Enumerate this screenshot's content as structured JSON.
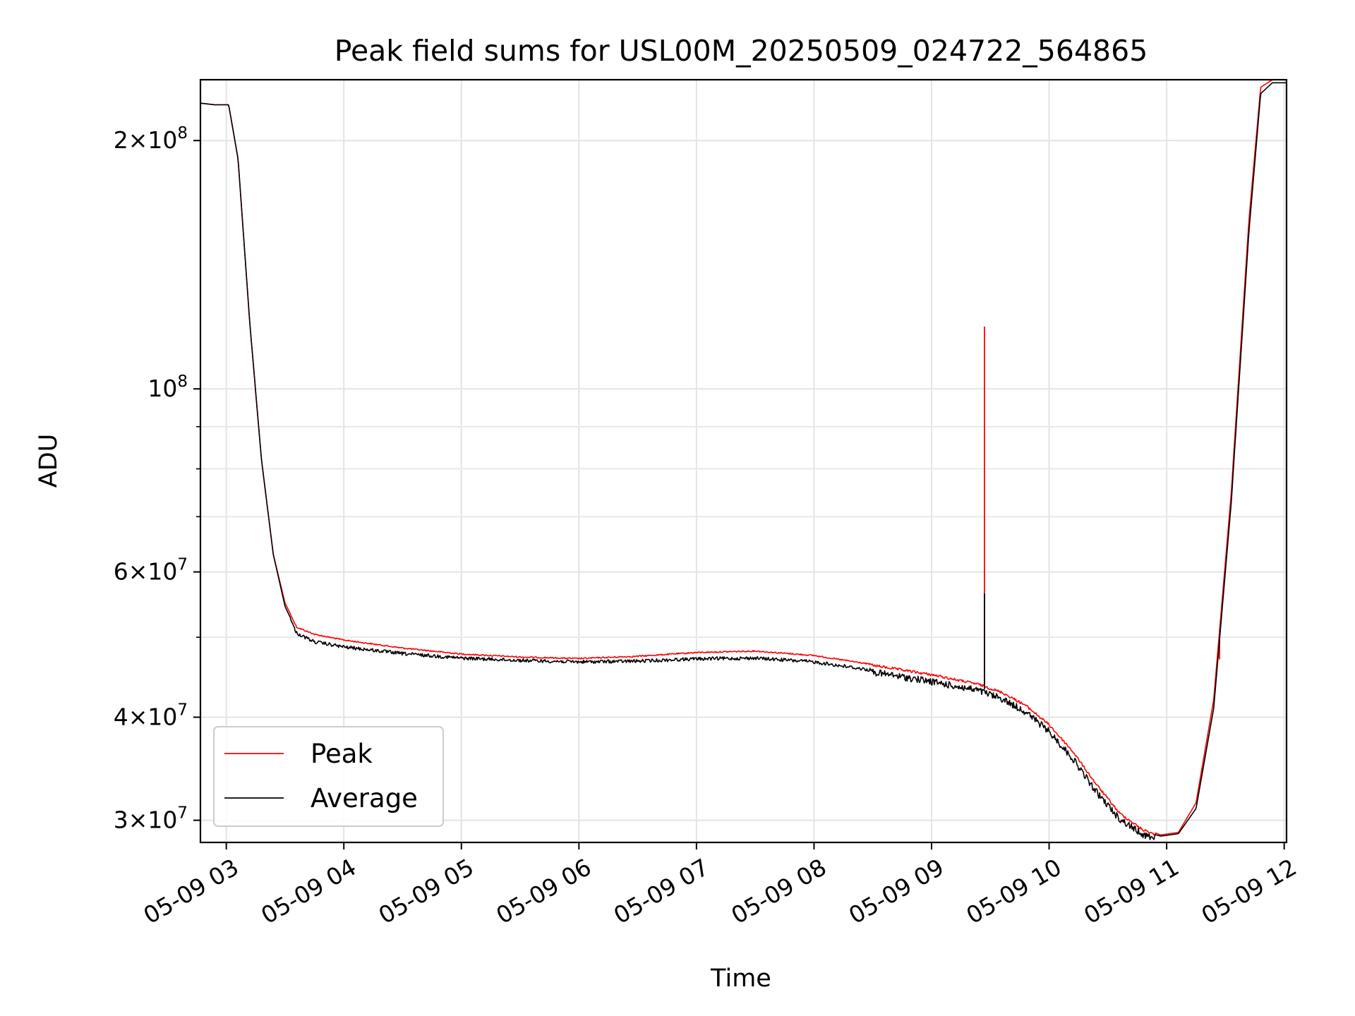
{
  "chart_data": {
    "type": "line",
    "title": "Peak field sums for USL00M_20250509_024722_564865",
    "xlabel": "Time",
    "ylabel": "ADU",
    "x_unit": "hours (2025-05-09)",
    "xlim": [
      2.78,
      12.02
    ],
    "ylim": [
      28200000,
      237000000
    ],
    "yscale": "log",
    "grid": true,
    "legend_position": "lower-left",
    "x_tick_labels": [
      {
        "x": 3,
        "label": "05-09 03"
      },
      {
        "x": 4,
        "label": "05-09 04"
      },
      {
        "x": 5,
        "label": "05-09 05"
      },
      {
        "x": 6,
        "label": "05-09 06"
      },
      {
        "x": 7,
        "label": "05-09 07"
      },
      {
        "x": 8,
        "label": "05-09 08"
      },
      {
        "x": 9,
        "label": "05-09 09"
      },
      {
        "x": 10,
        "label": "05-09 10"
      },
      {
        "x": 11,
        "label": "05-09 11"
      },
      {
        "x": 12,
        "label": "05-09 12"
      }
    ],
    "y_major_ticks": [
      {
        "y": 100000000,
        "base": "10",
        "exp": "8",
        "mant": ""
      },
      {
        "y": 30000000,
        "base": "10",
        "exp": "7",
        "mant": "3"
      },
      {
        "y": 40000000,
        "base": "10",
        "exp": "7",
        "mant": "4"
      },
      {
        "y": 60000000,
        "base": "10",
        "exp": "7",
        "mant": "6"
      },
      {
        "y": 200000000,
        "base": "10",
        "exp": "8",
        "mant": "2"
      }
    ],
    "y_minor_ticks": [
      50000000,
      70000000,
      80000000,
      90000000
    ],
    "series": [
      {
        "name": "Peak",
        "color": "#ff0000",
        "points": [
          [
            2.78,
            222000000
          ],
          [
            2.9,
            221000000
          ],
          [
            3.02,
            221000000
          ],
          [
            3.1,
            190000000
          ],
          [
            3.2,
            120000000
          ],
          [
            3.3,
            82000000
          ],
          [
            3.4,
            63000000
          ],
          [
            3.5,
            55000000
          ],
          [
            3.6,
            51500000
          ],
          [
            3.75,
            50500000
          ],
          [
            4.0,
            49700000
          ],
          [
            4.5,
            48600000
          ],
          [
            5.0,
            47800000
          ],
          [
            5.5,
            47400000
          ],
          [
            6.0,
            47200000
          ],
          [
            6.5,
            47500000
          ],
          [
            7.0,
            48000000
          ],
          [
            7.5,
            48200000
          ],
          [
            8.0,
            47600000
          ],
          [
            8.5,
            46400000
          ],
          [
            9.0,
            45200000
          ],
          [
            9.4,
            44000000
          ],
          [
            9.6,
            43000000
          ],
          [
            9.8,
            41500000
          ],
          [
            10.0,
            39300000
          ],
          [
            10.2,
            36500000
          ],
          [
            10.4,
            33300000
          ],
          [
            10.6,
            30700000
          ],
          [
            10.8,
            29300000
          ],
          [
            10.95,
            28800000
          ],
          [
            11.1,
            29000000
          ],
          [
            11.25,
            31500000
          ],
          [
            11.4,
            42000000
          ],
          [
            11.55,
            75000000
          ],
          [
            11.7,
            160000000
          ],
          [
            11.8,
            232000000
          ],
          [
            11.9,
            237000000
          ],
          [
            12.02,
            237000000
          ]
        ],
        "spikes": [
          {
            "x": 9.45,
            "y": 119000000
          },
          {
            "x": 11.3,
            "y": 34000000
          },
          {
            "x": 11.45,
            "y": 47000000
          }
        ]
      },
      {
        "name": "Average",
        "color": "#000000",
        "points": [
          [
            2.78,
            222000000
          ],
          [
            2.9,
            221000000
          ],
          [
            3.02,
            221000000
          ],
          [
            3.1,
            190000000
          ],
          [
            3.2,
            120000000
          ],
          [
            3.3,
            82000000
          ],
          [
            3.4,
            63000000
          ],
          [
            3.5,
            54500000
          ],
          [
            3.6,
            50800000
          ],
          [
            3.75,
            49600000
          ],
          [
            4.0,
            48900000
          ],
          [
            4.5,
            48000000
          ],
          [
            5.0,
            47400000
          ],
          [
            5.5,
            47100000
          ],
          [
            6.0,
            46900000
          ],
          [
            6.5,
            47000000
          ],
          [
            7.0,
            47300000
          ],
          [
            7.5,
            47400000
          ],
          [
            8.0,
            46900000
          ],
          [
            8.5,
            45800000
          ],
          [
            9.0,
            44600000
          ],
          [
            9.4,
            43500000
          ],
          [
            9.6,
            42500000
          ],
          [
            9.8,
            41000000
          ],
          [
            10.0,
            38800000
          ],
          [
            10.2,
            36000000
          ],
          [
            10.4,
            32800000
          ],
          [
            10.6,
            30400000
          ],
          [
            10.8,
            29100000
          ],
          [
            10.95,
            28700000
          ],
          [
            11.1,
            28900000
          ],
          [
            11.25,
            31000000
          ],
          [
            11.4,
            41000000
          ],
          [
            11.55,
            73000000
          ],
          [
            11.7,
            155000000
          ],
          [
            11.8,
            228000000
          ],
          [
            11.9,
            235000000
          ],
          [
            12.02,
            235000000
          ]
        ],
        "spikes": [
          {
            "x": 9.45,
            "y": 56500000
          }
        ]
      }
    ]
  }
}
